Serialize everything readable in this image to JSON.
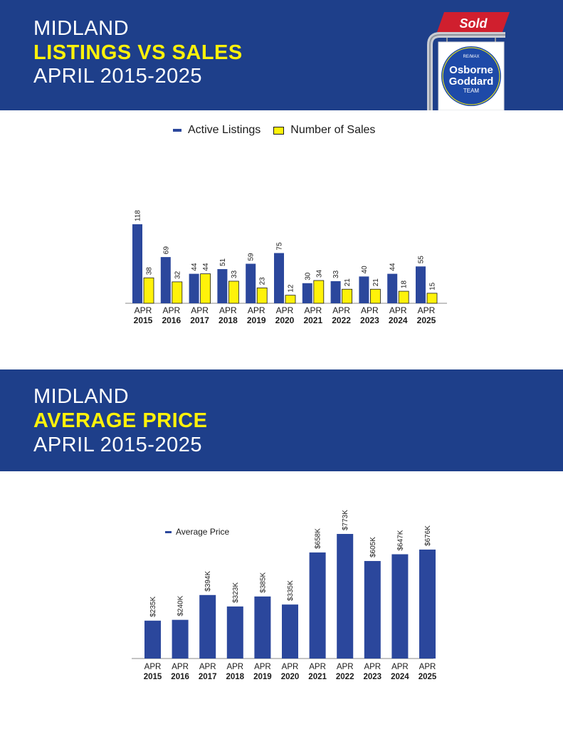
{
  "banner1": {
    "line1": "MIDLAND",
    "line2": "LISTINGS VS SALES",
    "line3": "APRIL 2015-2025"
  },
  "banner2": {
    "line1": "MIDLAND",
    "line2": "AVERAGE PRICE",
    "line3": "APRIL 2015-2025"
  },
  "logo": {
    "sign": "Sold",
    "brand_small": "RE/MAX",
    "name1": "Osborne",
    "name2": "Goddard",
    "name3": "TEAM"
  },
  "colors": {
    "banner": "#1e3f8a",
    "highlight": "#fff20a",
    "listings": "#2b479c",
    "sales": "#fff20a",
    "sign_red": "#d01f2e"
  },
  "chart_data": [
    {
      "type": "bar",
      "title": "",
      "categories": [
        "APR 2015",
        "APR 2016",
        "APR 2017",
        "APR 2018",
        "APR 2019",
        "APR 2020",
        "APR 2021",
        "APR 2022",
        "APR 2023",
        "APR 2024",
        "APR 2025"
      ],
      "category_top": [
        "APR",
        "APR",
        "APR",
        "APR",
        "APR",
        "APR",
        "APR",
        "APR",
        "APR",
        "APR",
        "APR"
      ],
      "category_bottom": [
        "2015",
        "2016",
        "2017",
        "2018",
        "2019",
        "2020",
        "2021",
        "2022",
        "2023",
        "2024",
        "2025"
      ],
      "series": [
        {
          "name": "Active Listings",
          "values": [
            118,
            69,
            44,
            51,
            59,
            75,
            30,
            33,
            40,
            44,
            55
          ],
          "labels": [
            "118",
            "69",
            "44",
            "51",
            "59",
            "75",
            "30",
            "33",
            "40",
            "44",
            "55"
          ]
        },
        {
          "name": "Number of Sales",
          "values": [
            38,
            32,
            44,
            33,
            23,
            12,
            34,
            21,
            21,
            18,
            15
          ],
          "labels": [
            "38",
            "32",
            "44",
            "33",
            "23",
            "12",
            "34",
            "21",
            "21",
            "18",
            "15"
          ]
        }
      ],
      "ylim": [
        0,
        118
      ],
      "grid": false,
      "legend": "top"
    },
    {
      "type": "bar",
      "title": "",
      "categories": [
        "APR 2015",
        "APR 2016",
        "APR 2017",
        "APR 2018",
        "APR 2019",
        "APR 2020",
        "APR 2021",
        "APR 2022",
        "APR 2023",
        "APR 2024",
        "APR 2025"
      ],
      "category_top": [
        "APR",
        "APR",
        "APR",
        "APR",
        "APR",
        "APR",
        "APR",
        "APR",
        "APR",
        "APR",
        "APR"
      ],
      "category_bottom": [
        "2015",
        "2016",
        "2017",
        "2018",
        "2019",
        "2020",
        "2021",
        "2022",
        "2023",
        "2024",
        "2025"
      ],
      "series": [
        {
          "name": "Average Price",
          "values": [
            235,
            240,
            394,
            323,
            385,
            335,
            658,
            773,
            605,
            647,
            676
          ],
          "labels": [
            "$235K",
            "$240K",
            "$394K",
            "$323K",
            "$385K",
            "$335K",
            "$658K",
            "$773K",
            "$605K",
            "$647K",
            "$676K"
          ]
        }
      ],
      "ylim": [
        0,
        773
      ],
      "grid": false,
      "legend": "top-left"
    }
  ]
}
